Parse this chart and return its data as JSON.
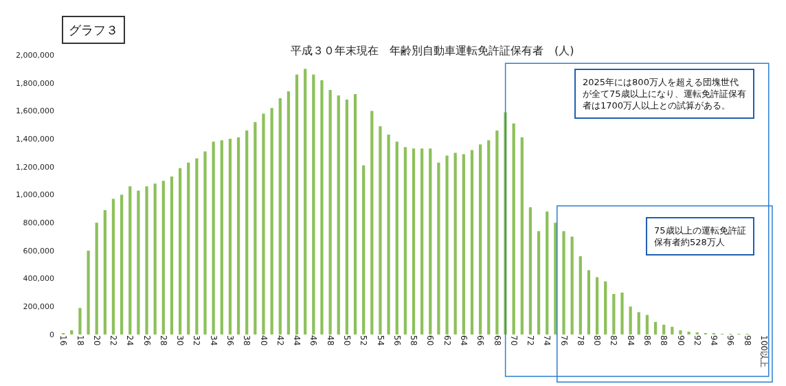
{
  "chart_data": {
    "type": "bar",
    "title": "平成３０年末現在　年齢別自動車運転免許証保有者　(人)",
    "categories": [
      "16",
      null,
      "18",
      null,
      "20",
      null,
      "22",
      null,
      "24",
      null,
      "26",
      null,
      "28",
      null,
      "30",
      null,
      "32",
      null,
      "34",
      null,
      "36",
      null,
      "38",
      null,
      "40",
      null,
      "42",
      null,
      "44",
      null,
      "46",
      null,
      "48",
      null,
      "50",
      null,
      "52",
      null,
      "54",
      null,
      "56",
      null,
      "58",
      null,
      "60",
      null,
      "62",
      null,
      "64",
      null,
      "66",
      null,
      "68",
      null,
      "70",
      null,
      "72",
      null,
      "74",
      null,
      "76",
      null,
      "78",
      null,
      "80",
      null,
      "82",
      null,
      "84",
      null,
      "86",
      null,
      "88",
      null,
      "90",
      null,
      "92",
      null,
      "94",
      null,
      "96",
      null,
      "98",
      null,
      "100以上"
    ],
    "values": [
      5000,
      30000,
      190000,
      600000,
      800000,
      890000,
      970000,
      1000000,
      1060000,
      1030000,
      1060000,
      1080000,
      1100000,
      1130000,
      1190000,
      1230000,
      1260000,
      1310000,
      1380000,
      1390000,
      1400000,
      1410000,
      1460000,
      1520000,
      1580000,
      1620000,
      1690000,
      1740000,
      1860000,
      1900000,
      1860000,
      1820000,
      1750000,
      1710000,
      1680000,
      1720000,
      1210000,
      1600000,
      1490000,
      1430000,
      1380000,
      1340000,
      1330000,
      1330000,
      1330000,
      1230000,
      1280000,
      1300000,
      1290000,
      1320000,
      1360000,
      1390000,
      1460000,
      1590000,
      1510000,
      1410000,
      910000,
      740000,
      880000,
      800000,
      740000,
      700000,
      560000,
      460000,
      410000,
      380000,
      290000,
      300000,
      200000,
      160000,
      140000,
      90000,
      70000,
      55000,
      30000,
      20000,
      15000,
      10000,
      5000,
      3000,
      2000,
      1000,
      1000,
      0,
      0
    ],
    "color": "#8dc05a",
    "ylim": [
      0,
      2000000
    ],
    "yticks": [
      {
        "value": 0,
        "label": "0"
      },
      {
        "value": 200000,
        "label": "200,000"
      },
      {
        "value": 400000,
        "label": "400,000"
      },
      {
        "value": 600000,
        "label": "600,000"
      },
      {
        "value": 800000,
        "label": "800,000"
      },
      {
        "value": 1000000,
        "label": "1,000,000"
      },
      {
        "value": 1200000,
        "label": "1,200,000"
      },
      {
        "value": 1400000,
        "label": "1,400,000"
      },
      {
        "value": 1600000,
        "label": "1,600,000"
      },
      {
        "value": 1800000,
        "label": "1,800,000"
      },
      {
        "value": 2000000,
        "label": "2,000,000"
      }
    ],
    "annotations": [
      "グラフ３",
      "2025年には800万人を超える団塊世代が全て75歳以上になり、運転免許証保有者は1700万人以上との試算がある。",
      "75歳以上の運転免許証保有者約528万人"
    ]
  }
}
